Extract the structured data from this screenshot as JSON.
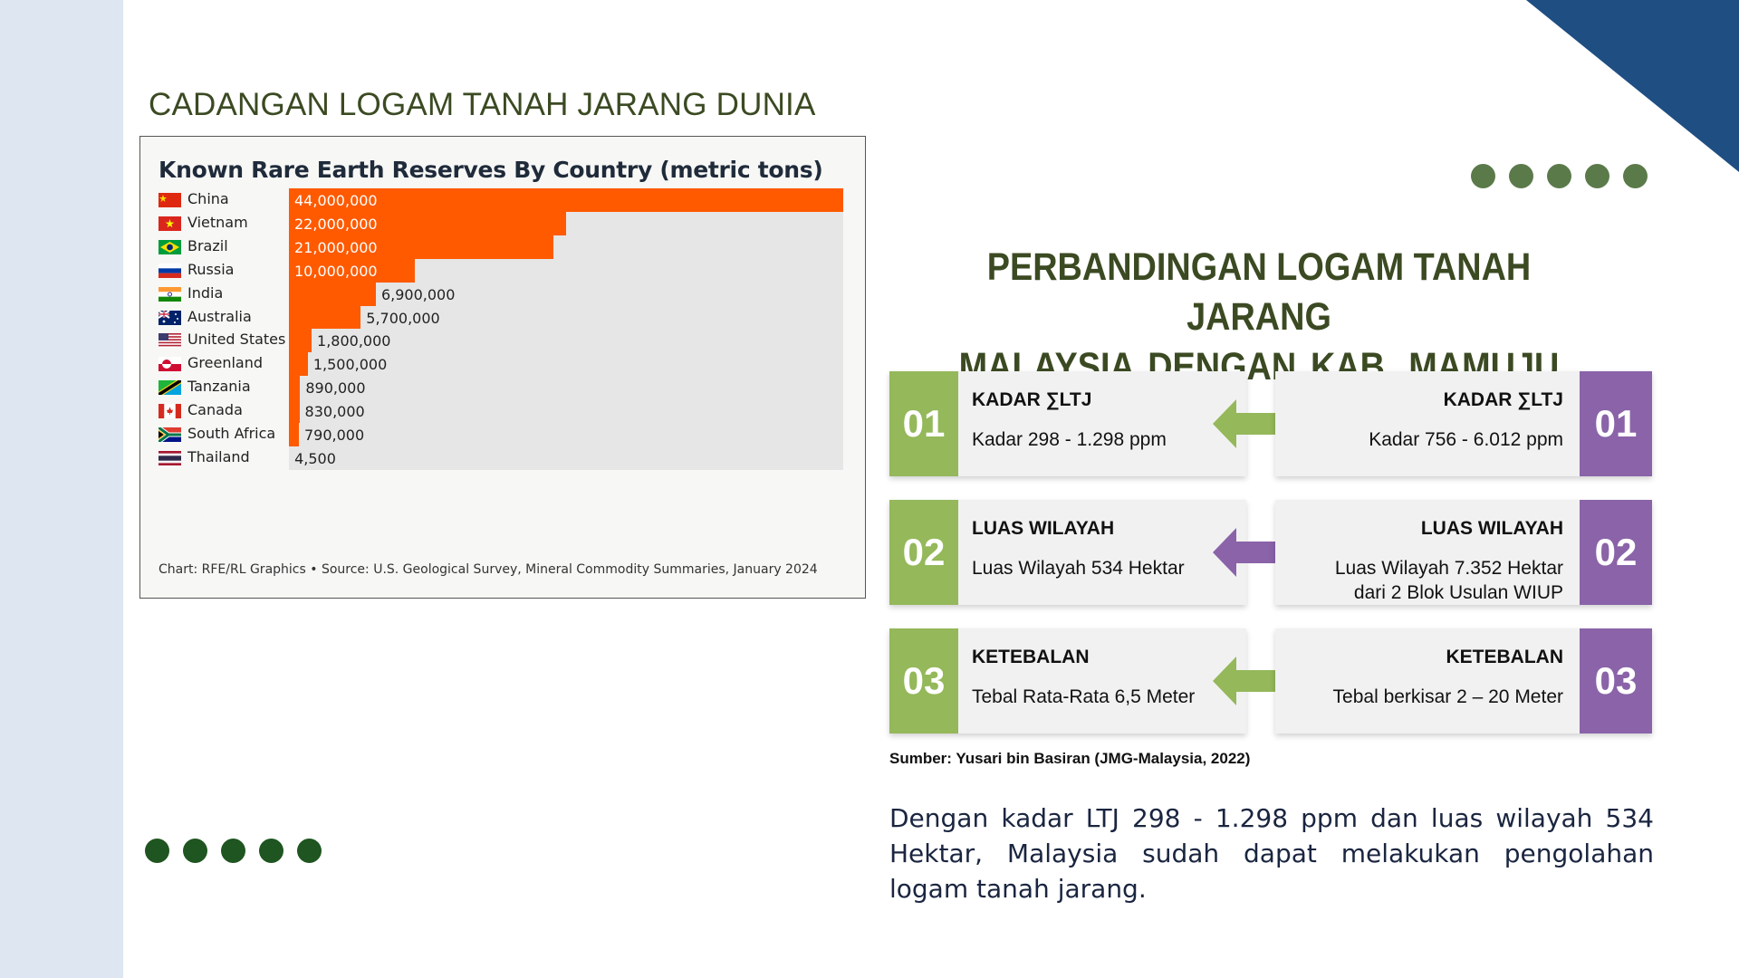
{
  "left_title": "CADANGAN LOGAM TANAH JARANG DUNIA",
  "chart_data": {
    "type": "bar",
    "orientation": "horizontal",
    "title": "Known Rare Earth Reserves By Country (metric tons)",
    "categories": [
      "China",
      "Vietnam",
      "Brazil",
      "Russia",
      "India",
      "Australia",
      "United States",
      "Greenland",
      "Tanzania",
      "Canada",
      "South Africa",
      "Thailand"
    ],
    "values": [
      44000000,
      22000000,
      21000000,
      10000000,
      6900000,
      5700000,
      1800000,
      1500000,
      890000,
      830000,
      790000,
      4500
    ],
    "value_labels": [
      "44,000,000",
      "22,000,000",
      "21,000,000",
      "10,000,000",
      "6,900,000",
      "5,700,000",
      "1,800,000",
      "1,500,000",
      "890,000",
      "830,000",
      "790,000",
      "4,500"
    ],
    "xlim": [
      0,
      44000000
    ],
    "source": "Chart: RFE/RL Graphics • Source: U.S. Geological Survey, Mineral Commodity Summaries, January 2024",
    "bar_color": "#ff5a00",
    "track_color": "#e6e6e6",
    "grid": false
  },
  "main_title": {
    "line1": "PERBANDINGAN LOGAM TANAH JARANG",
    "line2": "MALAYSIA  DENGAN  KAB. MAMUJU"
  },
  "comparisons": [
    {
      "number": "01",
      "left": {
        "heading": "KADAR ∑LTJ",
        "text": [
          "Kadar 298 - 1.298 ppm"
        ]
      },
      "right": {
        "heading": "KADAR ∑LTJ",
        "text": [
          "Kadar 756 - 6.012 ppm"
        ]
      },
      "arrow_color": "#94b85a"
    },
    {
      "number": "02",
      "left": {
        "heading": "LUAS WILAYAH",
        "text": [
          "Luas Wilayah 534 Hektar"
        ]
      },
      "right": {
        "heading": "LUAS WILAYAH",
        "text": [
          "Luas Wilayah 7.352 Hektar",
          "dari 2 Blok Usulan WIUP"
        ]
      },
      "arrow_color": "#8a63a8"
    },
    {
      "number": "03",
      "left": {
        "heading": "KETEBALAN",
        "text": [
          "Tebal Rata-Rata 6,5 Meter"
        ]
      },
      "right": {
        "heading": "KETEBALAN",
        "text": [
          "Tebal berkisar 2 – 20 Meter"
        ]
      },
      "arrow_color": "#94b85a"
    }
  ],
  "source": "Sumber: Yusari bin Basiran (JMG-Malaysia, 2022)",
  "paragraph": "Dengan kadar LTJ 298 - 1.298 ppm dan luas wilayah 534 Hektar, Malaysia sudah dapat melakukan pengolahan logam tanah jarang.",
  "colors": {
    "sidebar": "#dde6f1",
    "corner": "#1f4e82",
    "title_olive": "#3b4a22",
    "dots_top": "#5b7a4a",
    "dots_bottom": "#1f5520",
    "green": "#94b85a",
    "purple": "#8a63a8"
  }
}
